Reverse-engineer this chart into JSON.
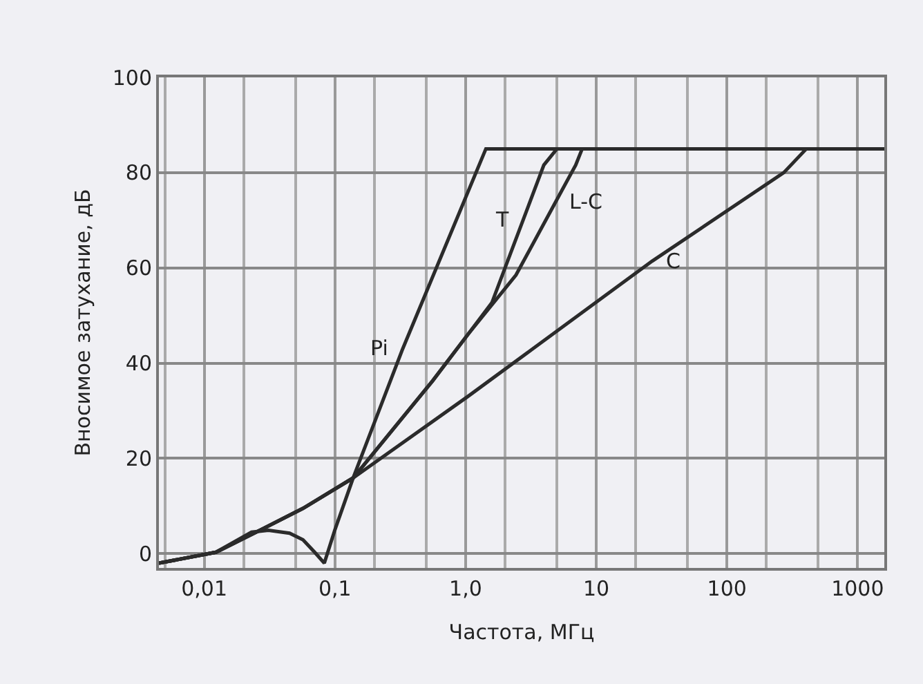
{
  "chart_data": {
    "type": "line",
    "xlabel": "Частота, МГц",
    "ylabel": "Вносимое затухание, дБ",
    "log": "x",
    "grid": true,
    "marker": "none",
    "line_style": "solid",
    "xlim": [
      0.0045,
      1600
    ],
    "xticks": [
      {
        "value": 0.01,
        "label": "0,01"
      },
      {
        "value": 0.1,
        "label": "0,1"
      },
      {
        "value": 1,
        "label": "1,0"
      },
      10,
      100,
      1000
    ],
    "ylim": [
      -3,
      100
    ],
    "yticks": [
      0,
      20,
      40,
      60,
      80,
      100
    ],
    "series": [
      {
        "color": "#2b2b2b",
        "x": [
          0.0045,
          0.0123,
          0.023,
          0.031,
          0.045,
          0.057,
          0.07,
          0.083,
          0.1,
          0.138,
          0.33,
          1.43,
          1600
        ],
        "values": [
          -2,
          0.3,
          4.5,
          4.9,
          4.3,
          2.9,
          0.3,
          -2,
          5,
          15.9,
          43,
          85,
          85
        ]
      },
      {
        "color": "#2b2b2b",
        "x": [
          0.0045,
          0.0123,
          0.028,
          0.057,
          0.138,
          0.56,
          1.04,
          1.59,
          2.75,
          3.97,
          5.0,
          1600
        ],
        "values": [
          -2,
          0.3,
          5.2,
          9.5,
          15.9,
          36.3,
          46,
          52.7,
          70,
          81.6,
          85,
          85
        ]
      },
      {
        "color": "#2b2b2b",
        "x": [
          0.0045,
          0.0123,
          0.028,
          0.057,
          0.138,
          0.56,
          1.04,
          2.43,
          4.92,
          6.96,
          7.8,
          1600
        ],
        "values": [
          -2,
          0.3,
          5.2,
          9.5,
          15.9,
          36.3,
          46,
          58.5,
          74,
          81.6,
          85,
          85
        ]
      },
      {
        "color": "#2b2b2b",
        "x": [
          0.0045,
          0.0123,
          0.028,
          0.057,
          0.138,
          1.04,
          26.7,
          272,
          405,
          1600
        ],
        "values": [
          -2,
          0.3,
          5.2,
          9.5,
          15.9,
          33,
          61.4,
          80,
          85,
          85
        ]
      }
    ],
    "annotations": [
      {
        "text": "Pi",
        "x": 0.33,
        "y": 43
      },
      {
        "text": "T",
        "x": 2.75,
        "y": 70
      },
      {
        "text": "L-C",
        "x": 4.92,
        "y": 74
      },
      {
        "text": "C",
        "x": 26.7,
        "y": 61.4
      }
    ]
  }
}
